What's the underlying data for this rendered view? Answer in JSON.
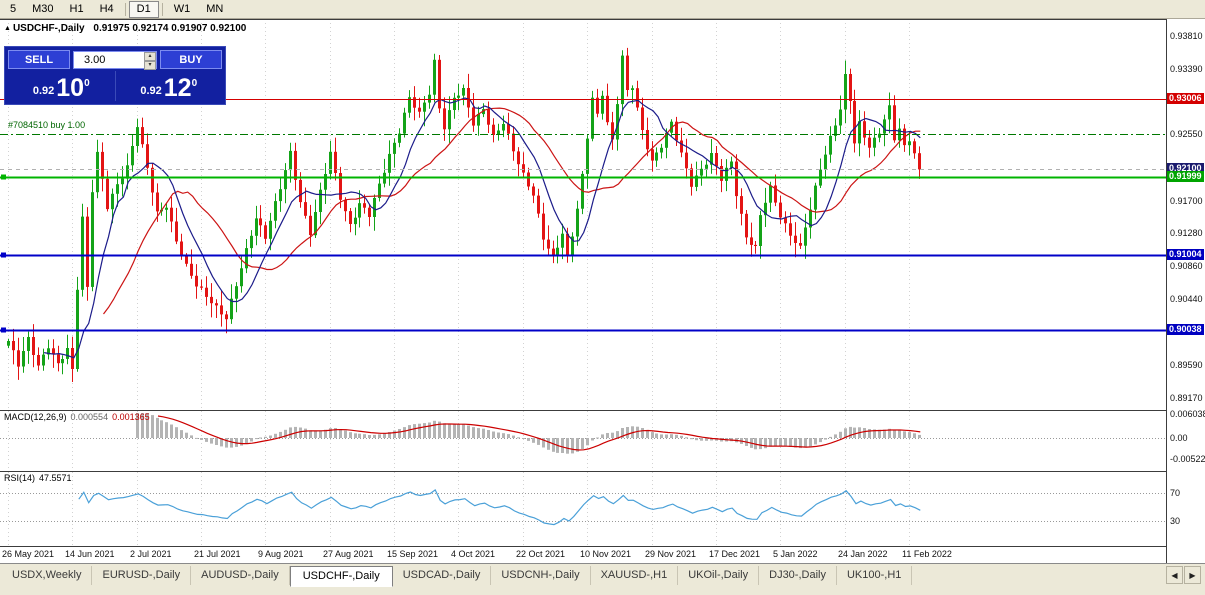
{
  "toolbar": {
    "timeframes": [
      {
        "label": "5"
      },
      {
        "label": "M30"
      },
      {
        "label": "H1"
      },
      {
        "label": "H4"
      },
      {
        "label": "D1",
        "active": true
      },
      {
        "label": "W1"
      },
      {
        "label": "MN"
      }
    ]
  },
  "chart": {
    "title": {
      "symbol": "USDCHF-,Daily",
      "ohlc": "0.91975 0.92174 0.91907 0.92100"
    },
    "trade_panel": {
      "sell_label": "SELL",
      "buy_label": "BUY",
      "volume": "3.00",
      "bid": {
        "small": "0.92",
        "big": "10",
        "sup": "0"
      },
      "ask": {
        "small": "0.92",
        "big": "12",
        "sup": "0"
      }
    },
    "position_label": "#7084510 buy 1.00",
    "scale_ticks": [
      {
        "label": "0.93810",
        "value": 0.9381
      },
      {
        "label": "0.93390",
        "value": 0.9339
      },
      {
        "label": "0.92550",
        "value": 0.9255
      },
      {
        "label": "0.91700",
        "value": 0.917
      },
      {
        "label": "0.91280",
        "value": 0.9128
      },
      {
        "label": "0.90860",
        "value": 0.9086
      },
      {
        "label": "0.90440",
        "value": 0.9044
      },
      {
        "label": "0.89590",
        "value": 0.8959
      },
      {
        "label": "0.89170",
        "value": 0.8917
      }
    ],
    "badges": [
      {
        "label": "0.93006",
        "value": 0.93006,
        "color": "#d40000"
      },
      {
        "label": "0.92100",
        "value": 0.921,
        "color": "#1b1b6e"
      },
      {
        "label": "0.91999",
        "value": 0.91999,
        "color": "#00a400"
      },
      {
        "label": "0.91004",
        "value": 0.91004,
        "color": "#0000c0"
      },
      {
        "label": "0.90038",
        "value": 0.90038,
        "color": "#0000c0"
      }
    ]
  },
  "chart_data": {
    "type": "candlestick",
    "symbol": "USDCHF",
    "timeframe": "Daily",
    "title": "USDCHF-,Daily",
    "current": {
      "open": 0.91975,
      "high": 0.92174,
      "low": 0.91907,
      "close": 0.921
    },
    "bid": 0.921,
    "ask": 0.9212,
    "y_axis": {
      "top_price": 0.9381,
      "bottom_price": 0.8917
    },
    "dates": [
      "26 May 2021",
      "14 Jun 2021",
      "2 Jul 2021",
      "21 Jul 2021",
      "9 Aug 2021",
      "27 Aug 2021",
      "15 Sep 2021",
      "4 Oct 2021",
      "22 Oct 2021",
      "10 Nov 2021",
      "29 Nov 2021",
      "17 Dec 2021",
      "5 Jan 2022",
      "24 Jan 2022",
      "11 Feb 2022"
    ],
    "candle_count": 185,
    "close_anchors": [
      [
        0,
        0.899
      ],
      [
        2,
        0.8958
      ],
      [
        4,
        0.8992
      ],
      [
        6,
        0.896
      ],
      [
        8,
        0.8985
      ],
      [
        10,
        0.8958
      ],
      [
        12,
        0.8978
      ],
      [
        13,
        0.8952
      ],
      [
        14,
        0.906
      ],
      [
        15,
        0.915
      ],
      [
        16,
        0.906
      ],
      [
        17,
        0.9185
      ],
      [
        18,
        0.923
      ],
      [
        20,
        0.916
      ],
      [
        22,
        0.919
      ],
      [
        24,
        0.9215
      ],
      [
        26,
        0.9268
      ],
      [
        28,
        0.921
      ],
      [
        30,
        0.9152
      ],
      [
        32,
        0.9165
      ],
      [
        34,
        0.912
      ],
      [
        36,
        0.9085
      ],
      [
        38,
        0.906
      ],
      [
        41,
        0.9042
      ],
      [
        44,
        0.902
      ],
      [
        46,
        0.906
      ],
      [
        48,
        0.9105
      ],
      [
        50,
        0.915
      ],
      [
        52,
        0.9125
      ],
      [
        55,
        0.9185
      ],
      [
        57,
        0.923
      ],
      [
        59,
        0.917
      ],
      [
        61,
        0.913
      ],
      [
        63,
        0.918
      ],
      [
        65,
        0.923
      ],
      [
        67,
        0.9175
      ],
      [
        69,
        0.914
      ],
      [
        71,
        0.9165
      ],
      [
        73,
        0.915
      ],
      [
        75,
        0.919
      ],
      [
        77,
        0.923
      ],
      [
        79,
        0.926
      ],
      [
        81,
        0.93
      ],
      [
        83,
        0.928
      ],
      [
        85,
        0.931
      ],
      [
        86,
        0.935
      ],
      [
        87,
        0.929
      ],
      [
        88,
        0.9265
      ],
      [
        90,
        0.93
      ],
      [
        92,
        0.931
      ],
      [
        94,
        0.927
      ],
      [
        96,
        0.929
      ],
      [
        98,
        0.925
      ],
      [
        100,
        0.9268
      ],
      [
        102,
        0.9235
      ],
      [
        104,
        0.9205
      ],
      [
        106,
        0.9178
      ],
      [
        108,
        0.912
      ],
      [
        110,
        0.9095
      ],
      [
        112,
        0.913
      ],
      [
        113,
        0.91
      ],
      [
        114,
        0.9128
      ],
      [
        115,
        0.916
      ],
      [
        116,
        0.92
      ],
      [
        117,
        0.925
      ],
      [
        118,
        0.93
      ],
      [
        119,
        0.9278
      ],
      [
        120,
        0.9308
      ],
      [
        121,
        0.9272
      ],
      [
        122,
        0.9248
      ],
      [
        123,
        0.9298
      ],
      [
        124,
        0.9355
      ],
      [
        125,
        0.9308
      ],
      [
        126,
        0.9315
      ],
      [
        128,
        0.9258
      ],
      [
        130,
        0.9222
      ],
      [
        132,
        0.9242
      ],
      [
        134,
        0.9268
      ],
      [
        136,
        0.9228
      ],
      [
        138,
        0.9192
      ],
      [
        140,
        0.9212
      ],
      [
        142,
        0.9228
      ],
      [
        144,
        0.9196
      ],
      [
        146,
        0.922
      ],
      [
        147,
        0.918
      ],
      [
        149,
        0.9125
      ],
      [
        151,
        0.9108
      ],
      [
        152,
        0.915
      ],
      [
        154,
        0.9185
      ],
      [
        156,
        0.9152
      ],
      [
        158,
        0.9128
      ],
      [
        160,
        0.9108
      ],
      [
        161,
        0.9135
      ],
      [
        162,
        0.9158
      ],
      [
        164,
        0.9212
      ],
      [
        166,
        0.9252
      ],
      [
        168,
        0.9288
      ],
      [
        169,
        0.9328
      ],
      [
        170,
        0.9298
      ],
      [
        171,
        0.9242
      ],
      [
        172,
        0.9268
      ],
      [
        174,
        0.924
      ],
      [
        176,
        0.926
      ],
      [
        178,
        0.9288
      ],
      [
        179,
        0.9248
      ],
      [
        180,
        0.926
      ],
      [
        181,
        0.9238
      ],
      [
        182,
        0.925
      ],
      [
        183,
        0.9232
      ],
      [
        184,
        0.921
      ]
    ],
    "levels": [
      {
        "value": 0.93006,
        "color": "#d40000",
        "width": 1,
        "dash": "",
        "marker": false,
        "name": "resistance-line"
      },
      {
        "value": 0.9255,
        "color": "#007800",
        "width": 1,
        "dash": "8,3,2,3",
        "marker": false,
        "name": "buy-position-line"
      },
      {
        "value": 0.921,
        "color": "#b0b0b0",
        "width": 1,
        "dash": "4,4",
        "marker": false,
        "name": "current-price-line"
      },
      {
        "value": 0.91999,
        "color": "#00b400",
        "width": 2,
        "dash": "",
        "marker": true,
        "name": "support-green"
      },
      {
        "value": 0.91004,
        "color": "#0000c8",
        "width": 2,
        "dash": "",
        "marker": true,
        "name": "support-blue-1"
      },
      {
        "value": 0.90038,
        "color": "#0000c8",
        "width": 2,
        "dash": "",
        "marker": true,
        "name": "support-blue-2"
      }
    ],
    "indicators": {
      "ma_fast": {
        "period": 8,
        "color": "#1c1c8a"
      },
      "ma_slow": {
        "period": 20,
        "color": "#cc1414"
      },
      "macd": {
        "fast": 12,
        "slow": 26,
        "signal": 9,
        "hist_color": "#b4b4b4",
        "signal_color": "#cc0000"
      },
      "rsi": {
        "period": 14,
        "color": "#4aa0d8",
        "levels": [
          70,
          30
        ]
      }
    },
    "candle_colors": {
      "up": "#14a318",
      "down": "#e31414"
    }
  },
  "macd_panel": {
    "name": "MACD(12,26,9)",
    "value1": "0.000554",
    "value2": "0.001365",
    "scale": [
      "0.006038",
      "0.00",
      "-0.00522"
    ]
  },
  "rsi_panel": {
    "name": "RSI(14)",
    "value": "47.5571",
    "level_labels": [
      "70",
      "30"
    ]
  },
  "tabs": {
    "scroll_left": "◀",
    "scroll_right": "▶",
    "items": [
      {
        "label": "USDX,Weekly"
      },
      {
        "label": "EURUSD-,Daily"
      },
      {
        "label": "AUDUSD-,Daily"
      },
      {
        "label": "USDCHF-,Daily",
        "active": true
      },
      {
        "label": "USDCAD-,Daily"
      },
      {
        "label": "USDCNH-,Daily"
      },
      {
        "label": "XAUUSD-,H1"
      },
      {
        "label": "UKOil-,Daily"
      },
      {
        "label": "DJ30-,Daily"
      },
      {
        "label": "UK100-,H1"
      }
    ]
  }
}
